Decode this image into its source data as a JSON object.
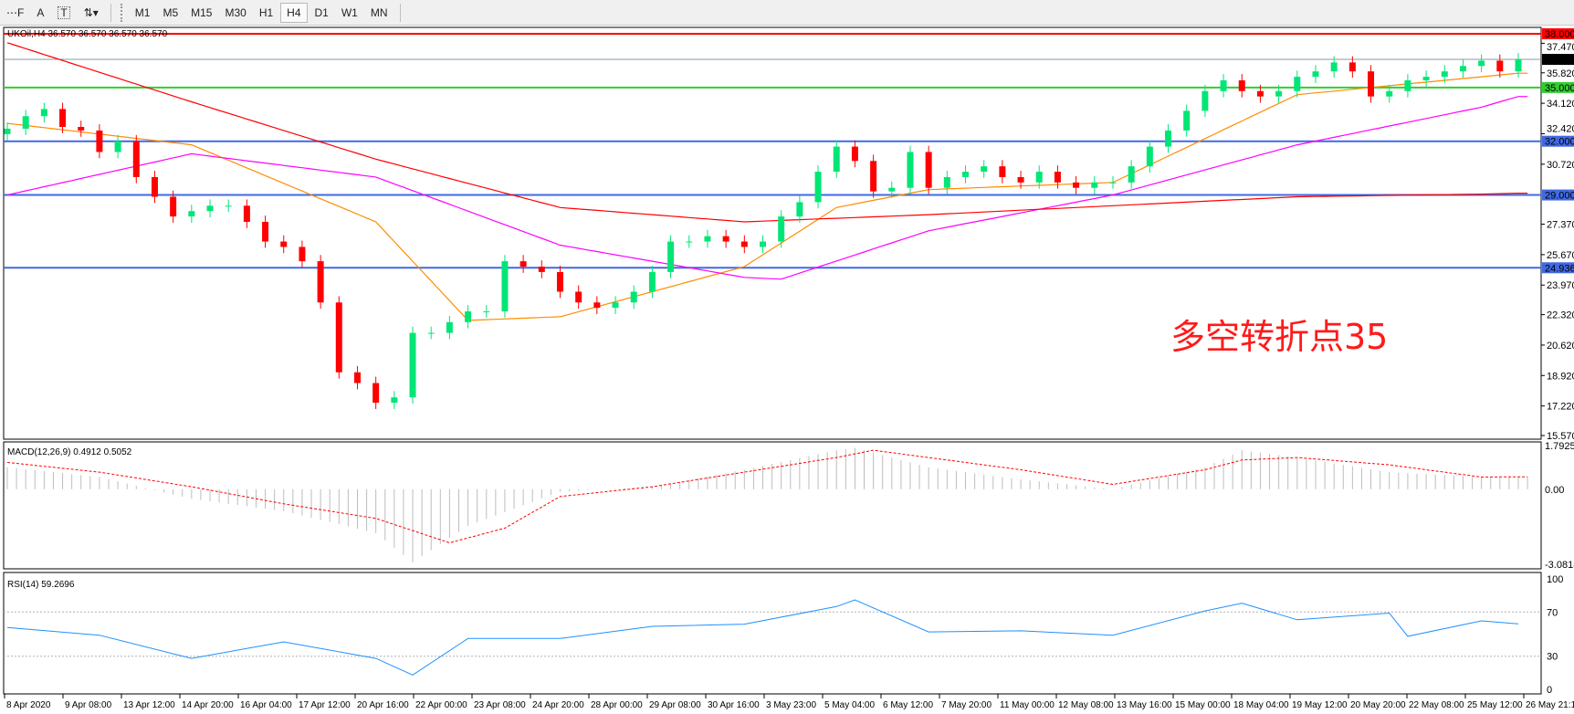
{
  "toolbar": {
    "tools": [
      {
        "name": "period-separator-icon",
        "glyph": "⋯F"
      },
      {
        "name": "text-tool-icon",
        "glyph": "A"
      },
      {
        "name": "text-label-tool-icon",
        "glyph": "T"
      },
      {
        "name": "arrows-tool-icon",
        "glyph": "⇅▾"
      }
    ],
    "timeframes": [
      "M1",
      "M5",
      "M15",
      "M30",
      "H1",
      "H4",
      "D1",
      "W1",
      "MN"
    ],
    "active_timeframe": "H4"
  },
  "chart": {
    "title": "UKOil,H4  36.570 36.570 36.570 36.570",
    "annotation": "多空转折点35",
    "macd_label": "MACD(12,26,9) 0.4912 0.5052",
    "rsi_label": "RSI(14) 59.2696"
  },
  "chart_data": {
    "type": "candlestick",
    "symbol": "UKOil",
    "timeframe": "H4",
    "price_ticks": [
      "37.470",
      "35.820",
      "34.120",
      "32.420",
      "30.720",
      "27.370",
      "25.670",
      "23.970",
      "22.320",
      "20.620",
      "18.920",
      "17.220",
      "15.570"
    ],
    "ylim": [
      15.57,
      38.0
    ],
    "closes": [
      32.7,
      33.4,
      33.8,
      32.8,
      32.6,
      31.4,
      32,
      30,
      28.9,
      27.8,
      28.1,
      28.4,
      28.4,
      27.5,
      26.4,
      26.1,
      25.3,
      23,
      19.1,
      18.5,
      17.4,
      17.7,
      21.3,
      21.3,
      21.9,
      22.5,
      22.5,
      25.3,
      25,
      24.7,
      23.6,
      23,
      22.7,
      23,
      23.6,
      24.7,
      26.4,
      26.4,
      26.7,
      26.4,
      26.1,
      26.4,
      27.8,
      28.6,
      30.3,
      31.7,
      30.9,
      29.2,
      29.4,
      31.4,
      29.4,
      30,
      30.3,
      30.6,
      30,
      29.7,
      30.3,
      29.7,
      29.4,
      29.7,
      29.7,
      30.6,
      31.7,
      32.6,
      33.7,
      34.8,
      35.4,
      34.8,
      34.5,
      34.8,
      35.6,
      35.9,
      36.4,
      35.9,
      34.5,
      34.8,
      35.4,
      35.6,
      35.9,
      36.2,
      36.5,
      35.9,
      36.57
    ],
    "moving_averages": [
      {
        "color": "#ff8c00",
        "points": [
          [
            0,
            33.0
          ],
          [
            10,
            31.8
          ],
          [
            20,
            27.5
          ],
          [
            25,
            22.0
          ],
          [
            30,
            22.2
          ],
          [
            40,
            25.0
          ],
          [
            45,
            28.3
          ],
          [
            50,
            29.3
          ],
          [
            60,
            29.7
          ],
          [
            70,
            34.6
          ],
          [
            80,
            35.6
          ],
          [
            82,
            35.8
          ]
        ]
      },
      {
        "color": "#ff00ff",
        "points": [
          [
            0,
            29.0
          ],
          [
            10,
            31.3
          ],
          [
            20,
            30.0
          ],
          [
            30,
            26.2
          ],
          [
            40,
            24.4
          ],
          [
            42,
            24.3
          ],
          [
            50,
            27.0
          ],
          [
            60,
            29.0
          ],
          [
            70,
            31.8
          ],
          [
            80,
            33.9
          ],
          [
            82,
            34.5
          ]
        ]
      },
      {
        "color": "#ff0000",
        "points": [
          [
            0,
            37.5
          ],
          [
            10,
            34.2
          ],
          [
            20,
            31.0
          ],
          [
            30,
            28.3
          ],
          [
            40,
            27.5
          ],
          [
            50,
            27.9
          ],
          [
            60,
            28.4
          ],
          [
            70,
            28.9
          ],
          [
            80,
            29.05
          ],
          [
            82,
            29.1
          ]
        ]
      }
    ],
    "levels": [
      {
        "value": 38.0,
        "label": "38.000",
        "color": "#ff0000"
      },
      {
        "value": 36.57,
        "label": "36.570",
        "color": "#000000",
        "line": "#8a9aa8"
      },
      {
        "value": 35.0,
        "label": "35.000",
        "color": "#32cd32"
      },
      {
        "value": 32.0,
        "label": "32.000",
        "color": "#4169e1"
      },
      {
        "value": 29.0,
        "label": "29.000",
        "color": "#4169e1"
      },
      {
        "value": 24.936,
        "label": "24.936",
        "color": "#4169e1"
      }
    ],
    "bull_color": "#00e676",
    "bear_color": "#ff0000",
    "macd": {
      "ylim": [
        -3.0818,
        1.7925
      ],
      "ticks": [
        "1.7925",
        "0.00",
        "-3.0818"
      ],
      "histogram": [
        [
          0,
          0.9
        ],
        [
          5,
          0.5
        ],
        [
          10,
          -0.4
        ],
        [
          15,
          -0.9
        ],
        [
          20,
          -1.8
        ],
        [
          22,
          -3.0
        ],
        [
          25,
          -1.5
        ],
        [
          30,
          -0.1
        ],
        [
          35,
          0.1
        ],
        [
          40,
          0.8
        ],
        [
          45,
          1.6
        ],
        [
          46,
          1.7
        ],
        [
          50,
          0.9
        ],
        [
          55,
          0.4
        ],
        [
          60,
          0.0
        ],
        [
          65,
          0.9
        ],
        [
          67,
          1.6
        ],
        [
          70,
          1.3
        ],
        [
          75,
          0.7
        ],
        [
          80,
          0.5
        ],
        [
          82,
          0.49
        ]
      ],
      "signal": [
        [
          0,
          1.1
        ],
        [
          5,
          0.7
        ],
        [
          10,
          0.1
        ],
        [
          15,
          -0.6
        ],
        [
          20,
          -1.2
        ],
        [
          24,
          -2.2
        ],
        [
          27,
          -1.6
        ],
        [
          30,
          -0.3
        ],
        [
          35,
          0.1
        ],
        [
          40,
          0.7
        ],
        [
          45,
          1.3
        ],
        [
          47,
          1.6
        ],
        [
          50,
          1.3
        ],
        [
          55,
          0.8
        ],
        [
          60,
          0.2
        ],
        [
          65,
          0.8
        ],
        [
          67,
          1.2
        ],
        [
          70,
          1.3
        ],
        [
          75,
          1.0
        ],
        [
          80,
          0.5
        ],
        [
          82,
          0.51
        ]
      ]
    },
    "rsi": {
      "ylim": [
        0,
        100
      ],
      "ticks": [
        "100",
        "70",
        "30",
        "0"
      ],
      "levels": [
        70,
        30
      ],
      "values": [
        [
          0,
          56
        ],
        [
          5,
          49
        ],
        [
          10,
          28
        ],
        [
          15,
          43
        ],
        [
          20,
          28
        ],
        [
          22,
          13
        ],
        [
          25,
          46
        ],
        [
          30,
          46
        ],
        [
          35,
          57
        ],
        [
          40,
          59
        ],
        [
          45,
          75
        ],
        [
          46,
          81
        ],
        [
          50,
          52
        ],
        [
          55,
          53
        ],
        [
          60,
          49
        ],
        [
          65,
          71
        ],
        [
          67,
          78
        ],
        [
          70,
          63
        ],
        [
          75,
          69
        ],
        [
          76,
          48
        ],
        [
          80,
          62
        ],
        [
          82,
          59.27
        ]
      ]
    },
    "time_labels": [
      "8 Apr 2020",
      "9 Apr 08:00",
      "13 Apr 12:00",
      "14 Apr 20:00",
      "16 Apr 04:00",
      "17 Apr 12:00",
      "20 Apr 16:00",
      "22 Apr 00:00",
      "23 Apr 08:00",
      "24 Apr 20:00",
      "28 Apr 00:00",
      "29 Apr 08:00",
      "30 Apr 16:00",
      "3 May 23:00",
      "5 May 04:00",
      "6 May 12:00",
      "7 May 20:00",
      "11 May 00:00",
      "12 May 08:00",
      "13 May 16:00",
      "15 May 00:00",
      "18 May 04:00",
      "19 May 12:00",
      "20 May 20:00",
      "22 May 08:00",
      "25 May 12:00",
      "26 May 21:15"
    ]
  }
}
